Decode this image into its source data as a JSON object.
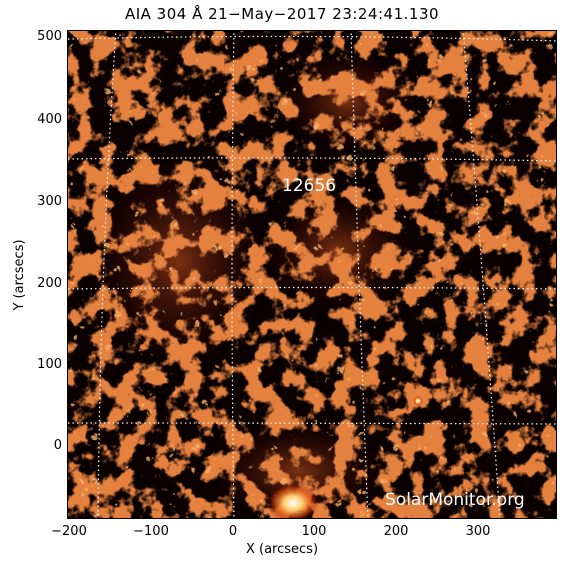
{
  "title": "AIA 304 Å 21−May−2017 23:24:41.130",
  "x_axis": {
    "label": "X (arcsecs)",
    "ticks": [
      "−200",
      "−100",
      "0",
      "100",
      "200",
      "300"
    ],
    "range": [
      -205,
      395
    ]
  },
  "y_axis": {
    "label": "Y (arcsecs)",
    "ticks": [
      "500",
      "400",
      "300",
      "200",
      "100",
      "0"
    ],
    "range": [
      -90,
      510
    ]
  },
  "active_region": "12656",
  "watermark": "SolarMonitor.org",
  "colors": {
    "background": "#0a0000",
    "plasma": "#c8401a",
    "grid": "#ffffff"
  }
}
